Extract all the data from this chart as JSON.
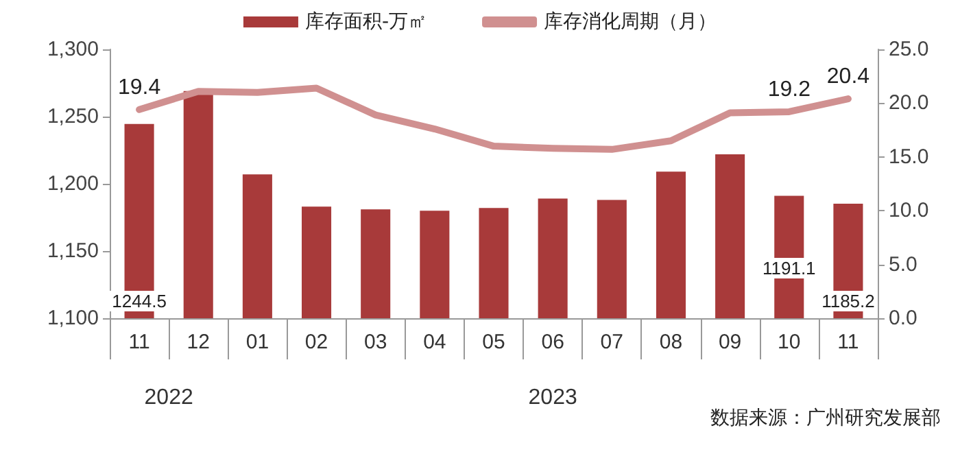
{
  "chart_data": {
    "type": "bar",
    "categories": [
      "11",
      "12",
      "01",
      "02",
      "03",
      "04",
      "05",
      "06",
      "07",
      "08",
      "09",
      "10",
      "11"
    ],
    "series": [
      {
        "name": "库存面积-万㎡",
        "color": "#a83a3a",
        "values": [
          1244.5,
          1269,
          1207,
          1183,
          1181,
          1180,
          1182,
          1189,
          1188,
          1209,
          1222,
          1191.1,
          1185.2
        ],
        "value_labels": [
          "1244.5",
          null,
          null,
          null,
          null,
          null,
          null,
          null,
          null,
          null,
          null,
          "1191.1",
          "1185.2"
        ]
      },
      {
        "name": "库存消化周期（月）",
        "type": "line",
        "axis": "y2",
        "color": "#d09090",
        "marker": "none",
        "line_style": "solid",
        "values": [
          19.4,
          21.1,
          21.0,
          21.4,
          18.9,
          17.6,
          16.0,
          15.8,
          15.7,
          16.5,
          19.1,
          19.2,
          20.4
        ],
        "value_labels": [
          "19.4",
          null,
          null,
          null,
          null,
          null,
          null,
          null,
          null,
          null,
          null,
          "19.2",
          "20.4"
        ]
      }
    ],
    "ylim": [
      1100,
      1300
    ],
    "yticks": [
      {
        "value": 1100,
        "label": "1,100"
      },
      {
        "value": 1150,
        "label": "1,150"
      },
      {
        "value": 1200,
        "label": "1,200"
      },
      {
        "value": 1250,
        "label": "1,250"
      },
      {
        "value": 1300,
        "label": "1,300"
      }
    ],
    "y2lim": [
      0,
      25
    ],
    "y2ticks": [
      {
        "value": 0,
        "label": "0.0"
      },
      {
        "value": 5,
        "label": "5.0"
      },
      {
        "value": 10,
        "label": "10.0"
      },
      {
        "value": 15,
        "label": "15.0"
      },
      {
        "value": 20,
        "label": "20.0"
      },
      {
        "value": 25,
        "label": "25.0"
      }
    ],
    "grid": false,
    "legend": "top",
    "annotations": [
      "2022",
      "2023",
      "数据来源：广州研究发展部"
    ]
  }
}
